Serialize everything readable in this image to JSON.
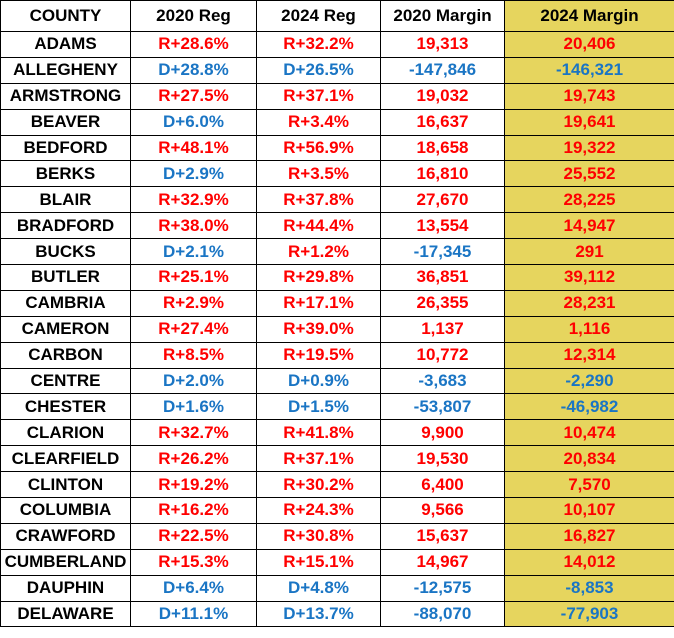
{
  "headers": [
    "COUNTY",
    "2020 Reg",
    "2024 Reg",
    "2020 Margin",
    "2024 Margin"
  ],
  "colors": {
    "republican": "#ff0000",
    "democrat": "#1a75c4",
    "highlight": "#e6d55e"
  },
  "rows": [
    {
      "county": "ADAMS",
      "reg2020": "R+28.6%",
      "reg2024": "R+32.2%",
      "margin2020": "19,313",
      "margin2024": "20,406"
    },
    {
      "county": "ALLEGHENY",
      "reg2020": "D+28.8%",
      "reg2024": "D+26.5%",
      "margin2020": "-147,846",
      "margin2024": "-146,321"
    },
    {
      "county": "ARMSTRONG",
      "reg2020": "R+27.5%",
      "reg2024": "R+37.1%",
      "margin2020": "19,032",
      "margin2024": "19,743"
    },
    {
      "county": "BEAVER",
      "reg2020": "D+6.0%",
      "reg2024": "R+3.4%",
      "margin2020": "16,637",
      "margin2024": "19,641"
    },
    {
      "county": "BEDFORD",
      "reg2020": "R+48.1%",
      "reg2024": "R+56.9%",
      "margin2020": "18,658",
      "margin2024": "19,322"
    },
    {
      "county": "BERKS",
      "reg2020": "D+2.9%",
      "reg2024": "R+3.5%",
      "margin2020": "16,810",
      "margin2024": "25,552"
    },
    {
      "county": "BLAIR",
      "reg2020": "R+32.9%",
      "reg2024": "R+37.8%",
      "margin2020": "27,670",
      "margin2024": "28,225"
    },
    {
      "county": "BRADFORD",
      "reg2020": "R+38.0%",
      "reg2024": "R+44.4%",
      "margin2020": "13,554",
      "margin2024": "14,947"
    },
    {
      "county": "BUCKS",
      "reg2020": "D+2.1%",
      "reg2024": "R+1.2%",
      "margin2020": "-17,345",
      "margin2024": "291"
    },
    {
      "county": "BUTLER",
      "reg2020": "R+25.1%",
      "reg2024": "R+29.8%",
      "margin2020": "36,851",
      "margin2024": "39,112"
    },
    {
      "county": "CAMBRIA",
      "reg2020": "R+2.9%",
      "reg2024": "R+17.1%",
      "margin2020": "26,355",
      "margin2024": "28,231"
    },
    {
      "county": "CAMERON",
      "reg2020": "R+27.4%",
      "reg2024": "R+39.0%",
      "margin2020": "1,137",
      "margin2024": "1,116"
    },
    {
      "county": "CARBON",
      "reg2020": "R+8.5%",
      "reg2024": "R+19.5%",
      "margin2020": "10,772",
      "margin2024": "12,314"
    },
    {
      "county": "CENTRE",
      "reg2020": "D+2.0%",
      "reg2024": "D+0.9%",
      "margin2020": "-3,683",
      "margin2024": "-2,290"
    },
    {
      "county": "CHESTER",
      "reg2020": "D+1.6%",
      "reg2024": "D+1.5%",
      "margin2020": "-53,807",
      "margin2024": "-46,982"
    },
    {
      "county": "CLARION",
      "reg2020": "R+32.7%",
      "reg2024": "R+41.8%",
      "margin2020": "9,900",
      "margin2024": "10,474"
    },
    {
      "county": "CLEARFIELD",
      "reg2020": "R+26.2%",
      "reg2024": "R+37.1%",
      "margin2020": "19,530",
      "margin2024": "20,834"
    },
    {
      "county": "CLINTON",
      "reg2020": "R+19.2%",
      "reg2024": "R+30.2%",
      "margin2020": "6,400",
      "margin2024": "7,570"
    },
    {
      "county": "COLUMBIA",
      "reg2020": "R+16.2%",
      "reg2024": "R+24.3%",
      "margin2020": "9,566",
      "margin2024": "10,107"
    },
    {
      "county": "CRAWFORD",
      "reg2020": "R+22.5%",
      "reg2024": "R+30.8%",
      "margin2020": "15,637",
      "margin2024": "16,827"
    },
    {
      "county": "CUMBERLAND",
      "reg2020": "R+15.3%",
      "reg2024": "R+15.1%",
      "margin2020": "14,967",
      "margin2024": "14,012"
    },
    {
      "county": "DAUPHIN",
      "reg2020": "D+6.4%",
      "reg2024": "D+4.8%",
      "margin2020": "-12,575",
      "margin2024": "-8,853"
    },
    {
      "county": "DELAWARE",
      "reg2020": "D+11.1%",
      "reg2024": "D+13.7%",
      "margin2020": "-88,070",
      "margin2024": "-77,903"
    }
  ]
}
